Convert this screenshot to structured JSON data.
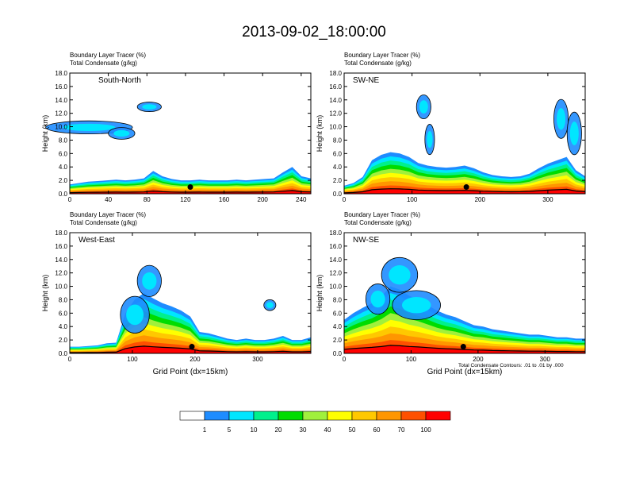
{
  "title": "2013-09-02_18:00:00",
  "footnote": "Total Condensate Contours: .01 to .01 by .000",
  "colors": {
    "bands": [
      "#ffffff",
      "#1e8cff",
      "#00e6ff",
      "#00f08c",
      "#00dc00",
      "#a0f03c",
      "#ffff00",
      "#ffc800",
      "#ff9600",
      "#ff5000",
      "#ff0000"
    ],
    "contour": "#000000"
  },
  "colorbar": {
    "labels": [
      "1",
      "5",
      "10",
      "20",
      "30",
      "40",
      "50",
      "60",
      "70",
      "100"
    ]
  },
  "chart_data": [
    {
      "type": "heatmap",
      "name": "South-North",
      "line1": "Boundary Layer Tracer   (%)",
      "line2": "Total Condensate   (g/kg)",
      "ylabel": "Height (km)",
      "xlabel": "",
      "ylim": [
        0,
        18
      ],
      "xlim": [
        0,
        250
      ],
      "xticks": [
        "0",
        "40",
        "80",
        "120",
        "160",
        "200",
        "240"
      ],
      "yticks": [
        "0.0",
        "2.0",
        "4.0",
        "6.0",
        "8.0",
        "10.0",
        "12.0",
        "14.0",
        "16.0",
        "18.0"
      ],
      "bl_top_km": [
        1.4,
        1.6,
        1.8,
        1.9,
        2.0,
        2.1,
        2.0,
        2.1,
        2.3,
        3.4,
        2.6,
        2.2,
        2.0,
        2.0,
        2.1,
        2.0,
        2.0,
        2.0,
        2.1,
        2.0,
        2.1,
        2.2,
        2.3,
        3.2,
        4.0,
        2.6,
        2.3
      ],
      "marker_x": 125
    },
    {
      "type": "heatmap",
      "name": "SW-NE",
      "line1": "Boundary Layer Tracer   (%)",
      "line2": "Total Condensate   (g/kg)",
      "ylabel": "Height (km)",
      "xlabel": "",
      "ylim": [
        0,
        18
      ],
      "xlim": [
        0,
        355
      ],
      "xticks": [
        "0",
        "100",
        "200",
        "300"
      ],
      "yticks": [
        "0.0",
        "2.0",
        "4.0",
        "6.0",
        "8.0",
        "10.0",
        "12.0",
        "14.0",
        "16.0",
        "18.0"
      ],
      "bl_top_km": [
        1.2,
        1.6,
        2.5,
        5.0,
        5.8,
        6.2,
        6.0,
        5.5,
        4.6,
        4.2,
        4.0,
        3.9,
        4.0,
        4.2,
        3.8,
        3.2,
        2.8,
        2.6,
        2.5,
        2.6,
        3.0,
        3.8,
        4.5,
        5.0,
        5.5,
        3.5,
        2.6
      ],
      "marker_x": 180
    },
    {
      "type": "heatmap",
      "name": "West-East",
      "line1": "Boundary Layer Tracer   (%)",
      "line2": "Total Condensate   (g/kg)",
      "ylabel": "Height (km)",
      "xlabel": "Grid Point (dx=15km)",
      "ylim": [
        0,
        18
      ],
      "xlim": [
        0,
        385
      ],
      "xticks": [
        "0",
        "100",
        "200",
        "300"
      ],
      "yticks": [
        "0.0",
        "2.0",
        "4.0",
        "6.0",
        "8.0",
        "10.0",
        "12.0",
        "14.0",
        "16.0",
        "18.0"
      ],
      "bl_top_km": [
        1.0,
        1.0,
        1.1,
        1.2,
        1.5,
        1.6,
        6.0,
        8.0,
        9.0,
        8.2,
        7.5,
        7.0,
        6.4,
        5.5,
        3.2,
        3.0,
        2.6,
        2.2,
        2.0,
        2.2,
        2.0,
        2.0,
        2.2,
        2.6,
        2.0,
        2.0,
        2.4
      ],
      "marker_x": 195
    },
    {
      "type": "heatmap",
      "name": "NW-SE",
      "line1": "Boundary Layer Tracer   (%)",
      "line2": "Total Condensate   (g/kg)",
      "ylabel": "Height (km)",
      "xlabel": "Grid Point (dx=15km)",
      "ylim": [
        0,
        18
      ],
      "xlim": [
        0,
        360
      ],
      "xticks": [
        "0",
        "100",
        "200",
        "300"
      ],
      "yticks": [
        "0.0",
        "2.0",
        "4.0",
        "6.0",
        "8.0",
        "10.0",
        "12.0",
        "14.0",
        "16.0",
        "18.0"
      ],
      "bl_top_km": [
        5.0,
        6.0,
        6.8,
        7.5,
        8.5,
        10.0,
        9.5,
        8.6,
        8.0,
        7.2,
        6.4,
        5.8,
        5.4,
        4.8,
        4.2,
        4.0,
        3.6,
        3.4,
        3.2,
        3.0,
        2.8,
        2.8,
        2.6,
        2.4,
        2.4,
        2.2,
        2.2
      ],
      "marker_x": 178
    }
  ]
}
